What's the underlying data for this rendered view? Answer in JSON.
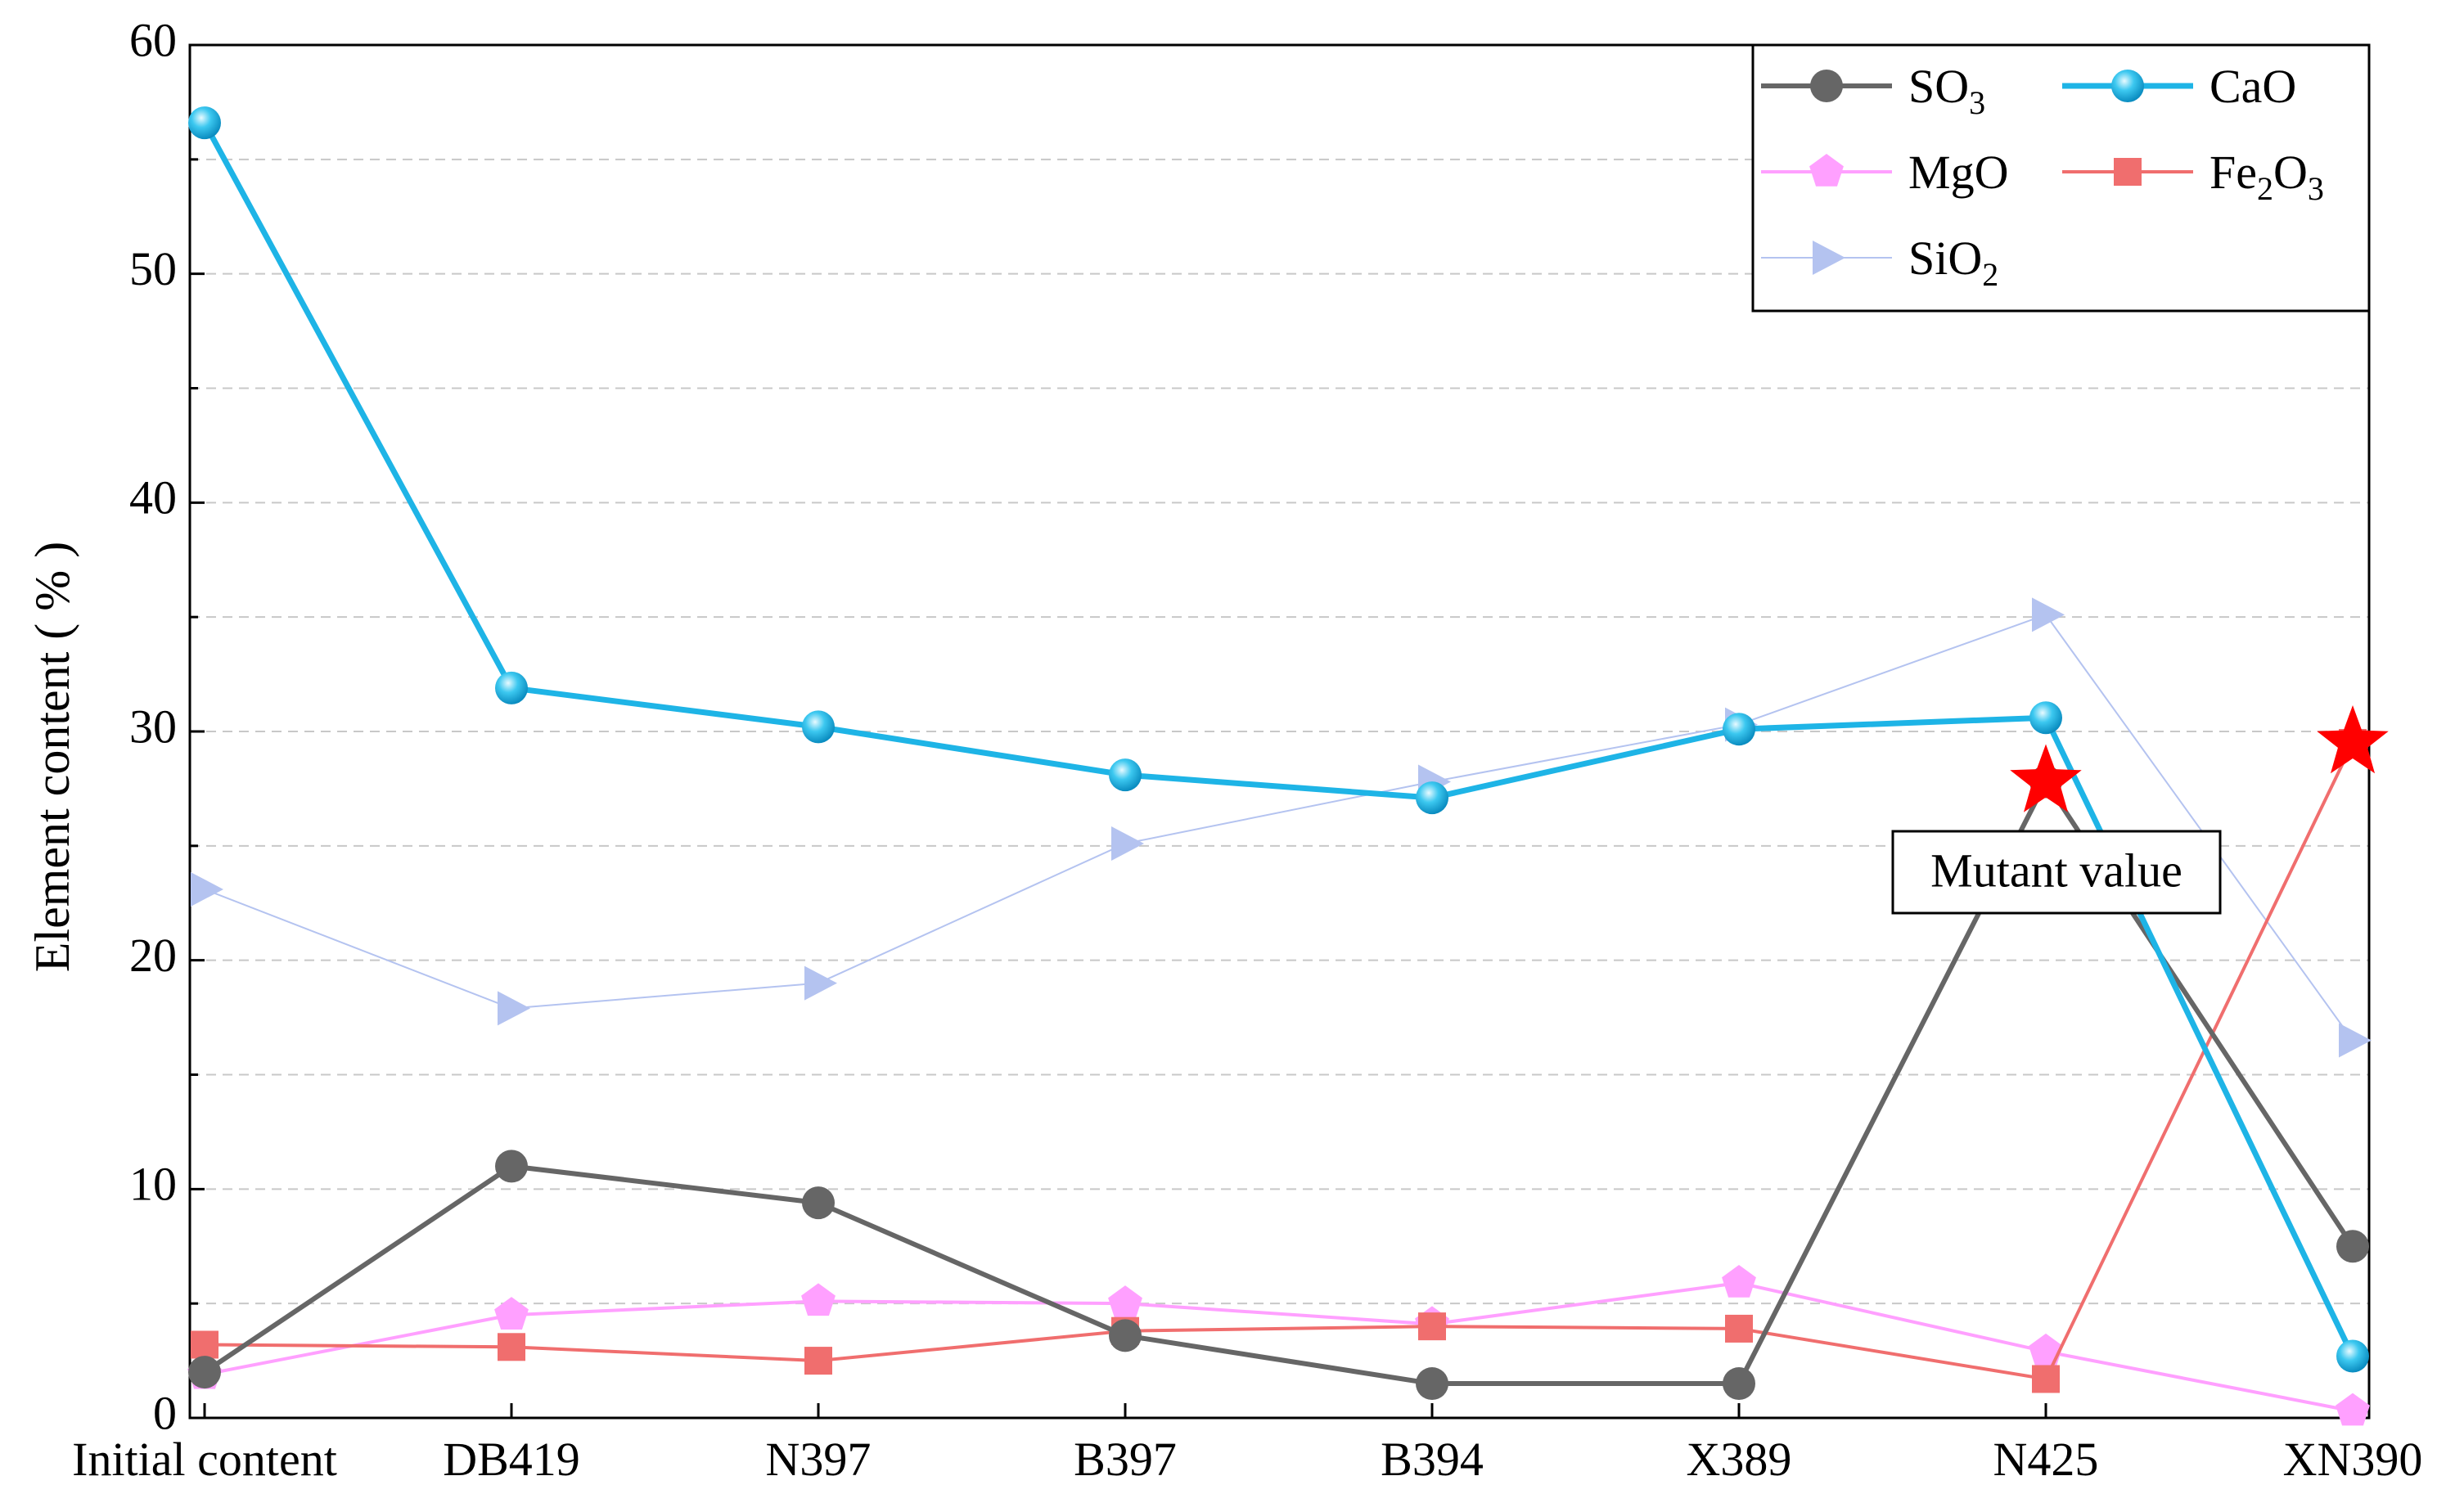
{
  "chart_data": {
    "type": "line",
    "title": "",
    "xlabel": "",
    "ylabel": "Element content ( % )",
    "ylim": [
      0,
      60
    ],
    "yticks": [
      "0",
      "10",
      "20",
      "30",
      "40",
      "50",
      "60"
    ],
    "grid": "horizontal dashed",
    "categories": [
      "Initial content",
      "DB419",
      "N397",
      "B397",
      "B394",
      "X389",
      "N425",
      "XN390"
    ],
    "legend_position": "top-right",
    "series": [
      {
        "key": "so3",
        "name": "SO3",
        "base": "SO",
        "sub": "3",
        "color": "#666666",
        "marker": "circle",
        "values": [
          2.0,
          11.0,
          9.4,
          3.6,
          1.5,
          1.5,
          27.8,
          7.5
        ]
      },
      {
        "key": "cao",
        "name": "CaO",
        "base": "CaO",
        "sub": "",
        "color": "#1EB4E6",
        "marker": "sphere",
        "values": [
          56.6,
          31.9,
          30.2,
          28.1,
          27.1,
          30.1,
          30.6,
          2.7
        ]
      },
      {
        "key": "mgo",
        "name": "MgO",
        "base": "MgO",
        "sub": "",
        "color": "#FFA0FF",
        "marker": "pentagon",
        "values": [
          1.9,
          4.5,
          5.1,
          5.0,
          4.1,
          5.9,
          2.9,
          0.3
        ]
      },
      {
        "key": "fe2o3",
        "name": "Fe2O3",
        "base": "Fe",
        "sub": "2",
        "tail": "O",
        "sub2": "3",
        "color": "#F06E6E",
        "marker": "square",
        "values": [
          3.2,
          3.1,
          2.5,
          3.8,
          4.0,
          3.9,
          1.7,
          29.5
        ]
      },
      {
        "key": "sio2",
        "name": "SiO2",
        "base": "SiO",
        "sub": "2",
        "color": "#B4C3F0",
        "marker": "triangle",
        "values": [
          23.1,
          17.9,
          19.0,
          25.1,
          27.8,
          30.3,
          35.1,
          16.5
        ]
      }
    ],
    "annotations": [
      {
        "text": "Mutant value",
        "type": "box"
      },
      {
        "type": "star",
        "series": "so3",
        "category": "N425",
        "value": 27.8,
        "color": "#FF0000"
      },
      {
        "type": "star",
        "series": "fe2o3",
        "category": "XN390",
        "value": 29.5,
        "color": "#FF0000"
      }
    ]
  }
}
